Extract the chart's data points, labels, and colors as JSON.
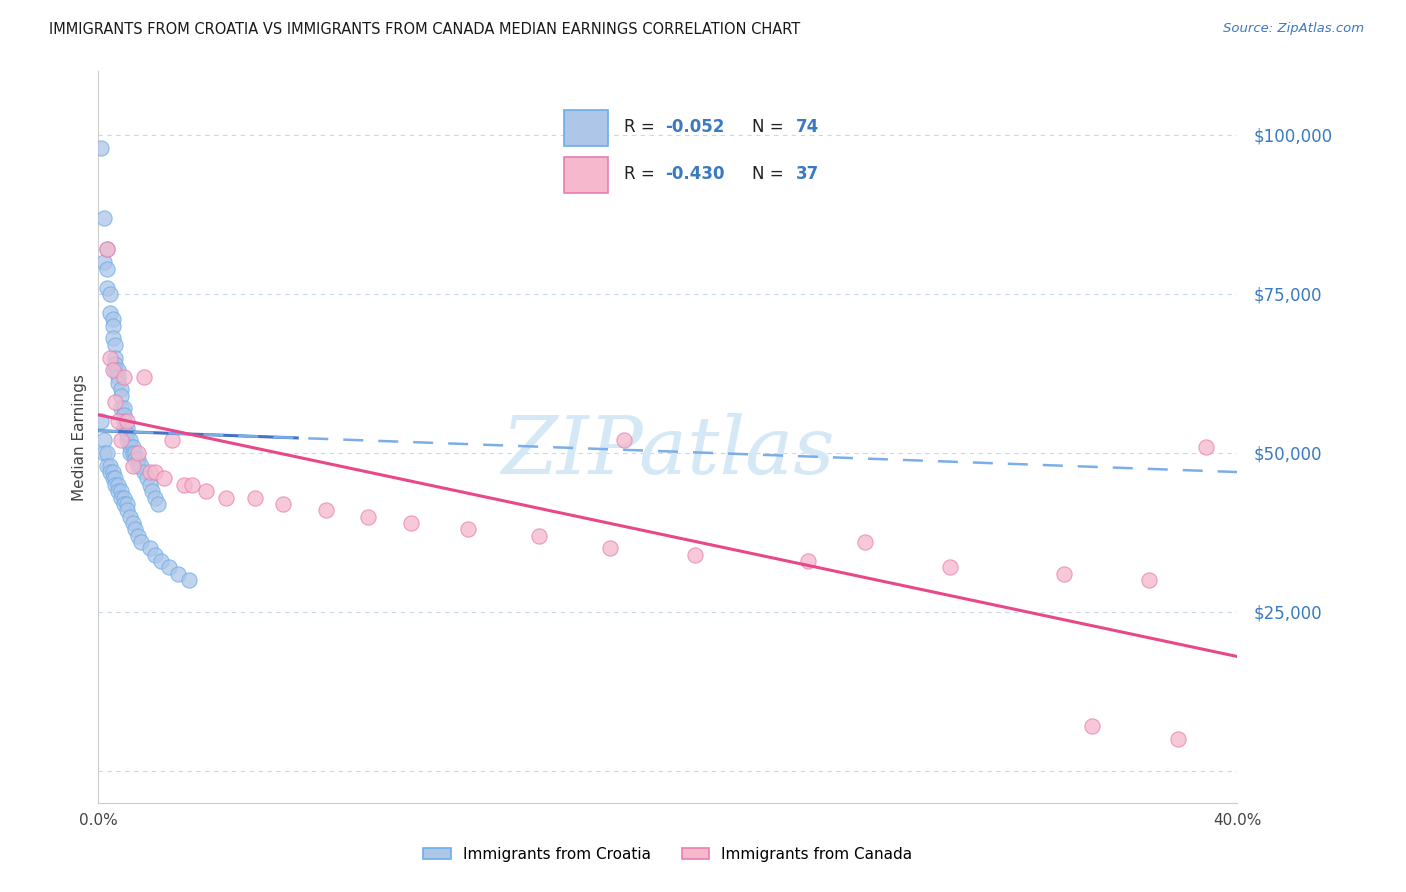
{
  "title": "IMMIGRANTS FROM CROATIA VS IMMIGRANTS FROM CANADA MEDIAN EARNINGS CORRELATION CHART",
  "source": "Source: ZipAtlas.com",
  "ylabel": "Median Earnings",
  "xlim": [
    0.0,
    0.401
  ],
  "ylim": [
    -5000,
    110000
  ],
  "yticks": [
    0,
    25000,
    50000,
    75000,
    100000
  ],
  "ytick_labels": [
    "",
    "$25,000",
    "$50,000",
    "$75,000",
    "$100,000"
  ],
  "legend_r1": "-0.052",
  "legend_n1": "74",
  "legend_r2": "-0.430",
  "legend_n2": "37",
  "color_croatia_fill": "#aec6e8",
  "color_croatia_edge": "#6aaee8",
  "color_canada_fill": "#f5b8cc",
  "color_canada_edge": "#e87fb0",
  "color_line_croatia_solid": "#4472c4",
  "color_line_croatia_dash": "#7aaee8",
  "color_line_canada": "#e8488a",
  "watermark_color": "#d5e8f5",
  "grid_color": "#c8d8e8",
  "croatia_x": [
    0.001,
    0.002,
    0.002,
    0.003,
    0.003,
    0.003,
    0.004,
    0.004,
    0.005,
    0.005,
    0.005,
    0.006,
    0.006,
    0.006,
    0.006,
    0.007,
    0.007,
    0.007,
    0.008,
    0.008,
    0.008,
    0.009,
    0.009,
    0.009,
    0.009,
    0.01,
    0.01,
    0.01,
    0.011,
    0.011,
    0.011,
    0.012,
    0.012,
    0.013,
    0.013,
    0.014,
    0.014,
    0.015,
    0.016,
    0.017,
    0.018,
    0.019,
    0.02,
    0.021,
    0.001,
    0.002,
    0.002,
    0.003,
    0.003,
    0.004,
    0.004,
    0.005,
    0.005,
    0.006,
    0.006,
    0.007,
    0.007,
    0.008,
    0.008,
    0.009,
    0.009,
    0.01,
    0.01,
    0.011,
    0.012,
    0.013,
    0.014,
    0.015,
    0.018,
    0.02,
    0.022,
    0.025,
    0.028,
    0.032
  ],
  "croatia_y": [
    98000,
    87000,
    80000,
    82000,
    79000,
    76000,
    75000,
    72000,
    71000,
    70000,
    68000,
    67000,
    65000,
    64000,
    63000,
    63000,
    62000,
    61000,
    60000,
    59000,
    57000,
    57000,
    56000,
    55000,
    54000,
    54000,
    53000,
    52000,
    52000,
    51000,
    50000,
    51000,
    50000,
    50000,
    49000,
    49000,
    48000,
    48000,
    47000,
    46000,
    45000,
    44000,
    43000,
    42000,
    55000,
    52000,
    50000,
    50000,
    48000,
    48000,
    47000,
    47000,
    46000,
    46000,
    45000,
    45000,
    44000,
    44000,
    43000,
    43000,
    42000,
    42000,
    41000,
    40000,
    39000,
    38000,
    37000,
    36000,
    35000,
    34000,
    33000,
    32000,
    31000,
    30000
  ],
  "canada_x": [
    0.003,
    0.004,
    0.005,
    0.006,
    0.007,
    0.008,
    0.009,
    0.01,
    0.012,
    0.014,
    0.016,
    0.018,
    0.02,
    0.023,
    0.026,
    0.03,
    0.033,
    0.038,
    0.045,
    0.055,
    0.065,
    0.08,
    0.095,
    0.11,
    0.13,
    0.155,
    0.18,
    0.21,
    0.25,
    0.3,
    0.34,
    0.37,
    0.39,
    0.185,
    0.27,
    0.35,
    0.38
  ],
  "canada_y": [
    82000,
    65000,
    63000,
    58000,
    55000,
    52000,
    62000,
    55000,
    48000,
    50000,
    62000,
    47000,
    47000,
    46000,
    52000,
    45000,
    45000,
    44000,
    43000,
    43000,
    42000,
    41000,
    40000,
    39000,
    38000,
    37000,
    35000,
    34000,
    33000,
    32000,
    31000,
    30000,
    51000,
    52000,
    36000,
    7000,
    5000
  ],
  "croatia_line_x0": 0.0,
  "croatia_line_y0": 53500,
  "croatia_line_x1": 0.401,
  "croatia_line_y1": 47000,
  "canada_line_x0": 0.0,
  "canada_line_y0": 56000,
  "canada_line_x1": 0.401,
  "canada_line_y1": 18000
}
